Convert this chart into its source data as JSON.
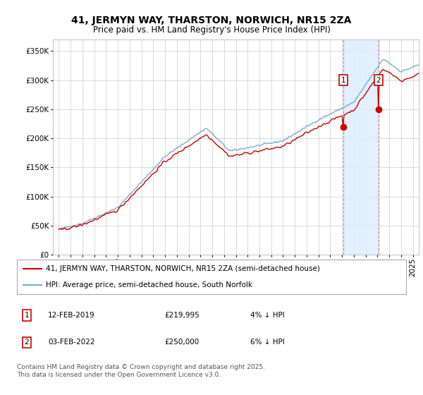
{
  "title": "41, JERMYN WAY, THARSTON, NORWICH, NR15 2ZA",
  "subtitle": "Price paid vs. HM Land Registry's House Price Index (HPI)",
  "ylabel_ticks": [
    0,
    50000,
    100000,
    150000,
    200000,
    250000,
    300000,
    350000
  ],
  "ylabel_labels": [
    "£0",
    "£50K",
    "£100K",
    "£150K",
    "£200K",
    "£250K",
    "£300K",
    "£350K"
  ],
  "xlim": [
    1994.5,
    2025.5
  ],
  "ylim": [
    0,
    370000
  ],
  "purchase1_x": 2019.1,
  "purchase1_y": 219995,
  "purchase1_label": "1",
  "purchase1_date": "12-FEB-2019",
  "purchase1_price": "£219,995",
  "purchase1_hpi": "4% ↓ HPI",
  "purchase2_x": 2022.08,
  "purchase2_y": 250000,
  "purchase2_label": "2",
  "purchase2_date": "03-FEB-2022",
  "purchase2_price": "£250,000",
  "purchase2_hpi": "6% ↓ HPI",
  "line_red_color": "#cc0000",
  "line_blue_color": "#7aadcc",
  "shade_color": "#ddeeff",
  "dashed_color": "#dd6677",
  "marker_box_color": "#cc0000",
  "legend_label_red": "41, JERMYN WAY, THARSTON, NORWICH, NR15 2ZA (semi-detached house)",
  "legend_label_blue": "HPI: Average price, semi-detached house, South Norfolk",
  "footer": "Contains HM Land Registry data © Crown copyright and database right 2025.\nThis data is licensed under the Open Government Licence v3.0.",
  "background_color": "#ffffff",
  "grid_color": "#cccccc",
  "title_fontsize": 10,
  "subtitle_fontsize": 8.5,
  "tick_fontsize": 7.5,
  "legend_fontsize": 7.5,
  "footer_fontsize": 6.5
}
